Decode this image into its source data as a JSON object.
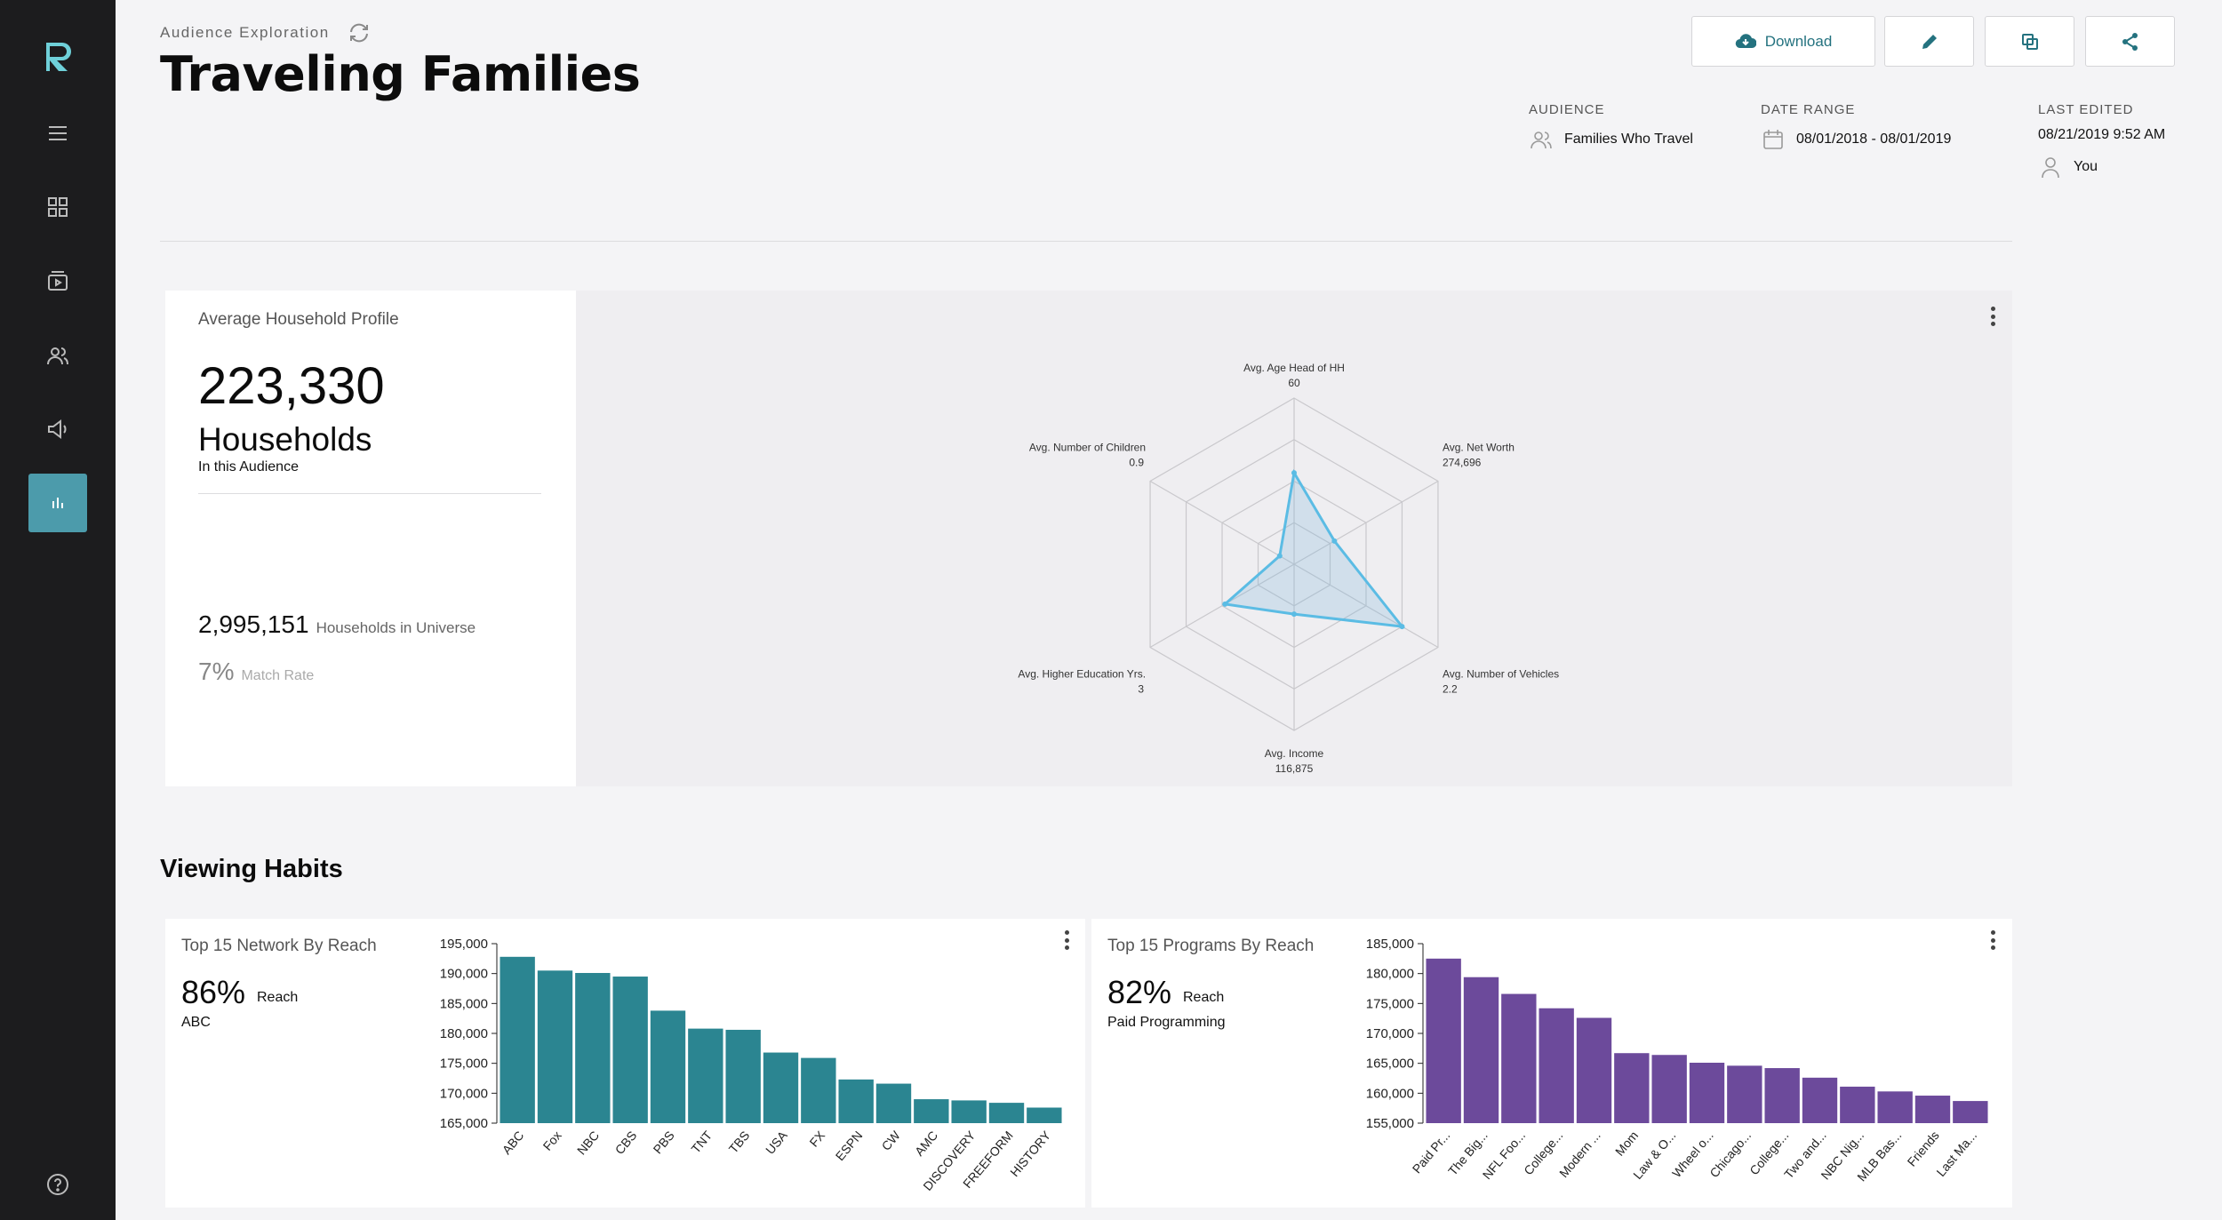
{
  "header": {
    "breadcrumb": "Audience Exploration",
    "title": "Traveling Families",
    "download_label": "Download"
  },
  "meta": {
    "audience_label": "AUDIENCE",
    "audience_value": "Families Who Travel",
    "date_label": "DATE RANGE",
    "date_value": "08/01/2018 - 08/01/2019",
    "edited_label": "LAST EDITED",
    "edited_value": "08/21/2019 9:52 AM",
    "edited_by": "You"
  },
  "profile": {
    "title": "Average Household Profile",
    "households": "223,330",
    "households_label": "Households",
    "households_sub": "In this Audience",
    "universe": "2,995,151",
    "universe_label": "Households in Universe",
    "match": "7%",
    "match_label": "Match Rate"
  },
  "radar": {
    "axes": [
      {
        "label": "Avg. Age Head of HH",
        "value": "60",
        "frac": 0.55
      },
      {
        "label": "Avg. Net Worth",
        "value": "274,696",
        "frac": 0.28
      },
      {
        "label": "Avg. Number of Vehicles",
        "value": "2.2",
        "frac": 0.75
      },
      {
        "label": "Avg. Income",
        "value": "116,875",
        "frac": 0.3
      },
      {
        "label": "Avg. Higher Education Yrs.",
        "value": "3",
        "frac": 0.48
      },
      {
        "label": "Avg. Number of Children",
        "value": "0.9",
        "frac": 0.1
      }
    ],
    "color": "#5bbce4"
  },
  "viewing": {
    "title": "Viewing Habits"
  },
  "chart_data": [
    {
      "type": "bar",
      "title": "Top 15 Network By Reach",
      "reach_pct": "86%",
      "reach_label": "Reach",
      "top_item": "ABC",
      "categories": [
        "ABC",
        "Fox",
        "NBC",
        "CBS",
        "PBS",
        "TNT",
        "TBS",
        "USA",
        "FX",
        "ESPN",
        "CW",
        "AMC",
        "DISCOVERY",
        "FREEFORM",
        "HISTORY"
      ],
      "values": [
        192800,
        190500,
        190100,
        189500,
        183800,
        180800,
        180600,
        176800,
        175900,
        172300,
        171600,
        169000,
        168800,
        168400,
        167600
      ],
      "ylim": [
        165000,
        195000
      ],
      "yticks": [
        "195,000",
        "190,000",
        "185,000",
        "180,000",
        "175,000",
        "170,000",
        "165,000"
      ],
      "color": "#2b8591"
    },
    {
      "type": "bar",
      "title": "Top 15 Programs By Reach",
      "reach_pct": "82%",
      "reach_label": "Reach",
      "top_item": "Paid Programming",
      "categories": [
        "Paid Pr...",
        "The Big...",
        "NFL Foo...",
        "College...",
        "Modern ...",
        "Mom",
        "Law & O...",
        "Wheel o...",
        "Chicago...",
        "College...",
        "Two and...",
        "NBC Nig...",
        "MLB Bas...",
        "Friends",
        "Last Ma..."
      ],
      "values": [
        182500,
        179400,
        176600,
        174200,
        172600,
        166700,
        166400,
        165100,
        164600,
        164200,
        162600,
        161100,
        160300,
        159600,
        158700
      ],
      "ylim": [
        155000,
        185000
      ],
      "yticks": [
        "185,000",
        "180,000",
        "175,000",
        "170,000",
        "165,000",
        "160,000",
        "155,000"
      ],
      "color": "#6c4a9b"
    }
  ]
}
